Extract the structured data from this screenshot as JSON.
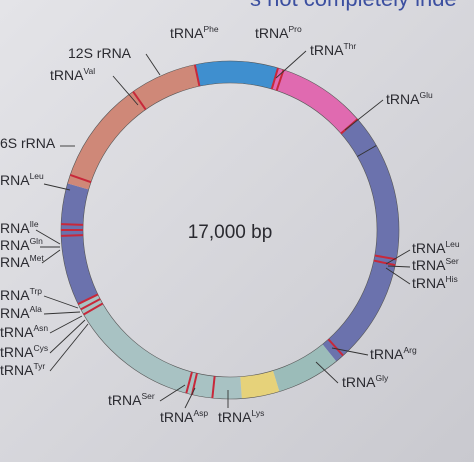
{
  "header_fragment": "s not completely inde",
  "center_label": "17,000 bp",
  "labels": [
    {
      "text": "12S rRNA"
    },
    {
      "text": "tRNA",
      "sup": "Val"
    },
    {
      "text": "tRNA",
      "sup": "Phe"
    },
    {
      "text": "tRNA",
      "sup": "Pro"
    },
    {
      "text": "tRNA",
      "sup": "Thr"
    },
    {
      "text": "tRNA",
      "sup": "Glu"
    },
    {
      "text": "6S rRNA"
    },
    {
      "text": "RNA",
      "sup": "Leu"
    },
    {
      "text": "RNA",
      "sup": "Ile"
    },
    {
      "text": "RNA",
      "sup": "Gln"
    },
    {
      "text": "RNA",
      "sup": "Met"
    },
    {
      "text": "RNA",
      "sup": "Trp"
    },
    {
      "text": "RNA",
      "sup": "Ala"
    },
    {
      "text": "tRNA",
      "sup": "Asn"
    },
    {
      "text": "tRNA",
      "sup": "Cys"
    },
    {
      "text": "tRNA",
      "sup": "Tyr"
    },
    {
      "text": "tRNA",
      "sup": "Ser"
    },
    {
      "text": "tRNA",
      "sup": "Asp"
    },
    {
      "text": "tRNA",
      "sup": "Lys"
    },
    {
      "text": "tRNA",
      "sup": "Gly"
    },
    {
      "text": "tRNA",
      "sup": "Arg"
    },
    {
      "text": "tRNA",
      "sup": "Leu"
    },
    {
      "text": "tRNA",
      "sup": "Ser"
    },
    {
      "text": "tRNA",
      "sup": "His"
    }
  ]
}
